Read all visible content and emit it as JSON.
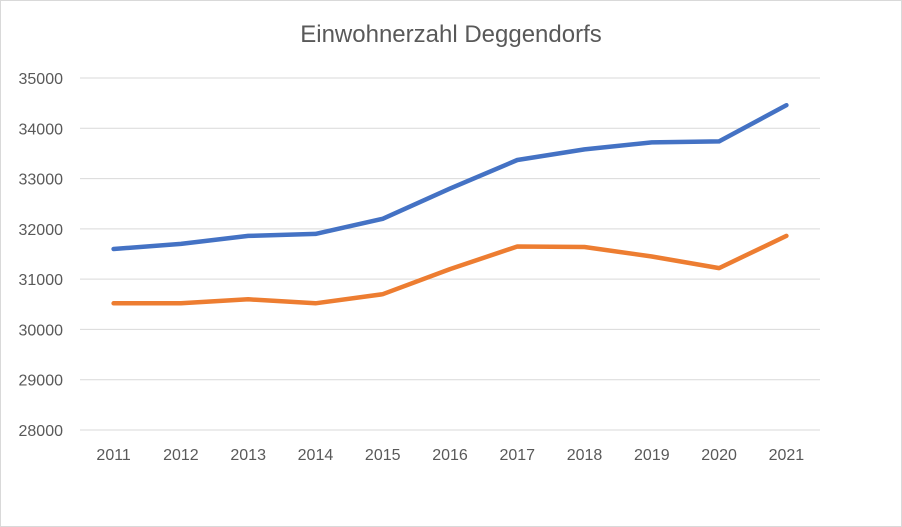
{
  "chart_data": {
    "type": "line",
    "title": "Einwohnerzahl Deggendorfs",
    "xlabel": "",
    "ylabel": "",
    "categories": [
      "2011",
      "2012",
      "2013",
      "2014",
      "2015",
      "2016",
      "2017",
      "2018",
      "2019",
      "2020",
      "2021"
    ],
    "ylim": [
      28000,
      35000
    ],
    "yticks": [
      28000,
      29000,
      30000,
      31000,
      32000,
      33000,
      34000,
      35000
    ],
    "grid": true,
    "legend": "none",
    "series": [
      {
        "color": "#4472c4",
        "values": [
          31600,
          31700,
          31860,
          31900,
          32200,
          32800,
          33370,
          33580,
          33720,
          33740,
          34460
        ]
      },
      {
        "color": "#ed7d31",
        "values": [
          30520,
          30520,
          30600,
          30520,
          30700,
          31200,
          31650,
          31640,
          31450,
          31220,
          31860
        ]
      }
    ]
  }
}
